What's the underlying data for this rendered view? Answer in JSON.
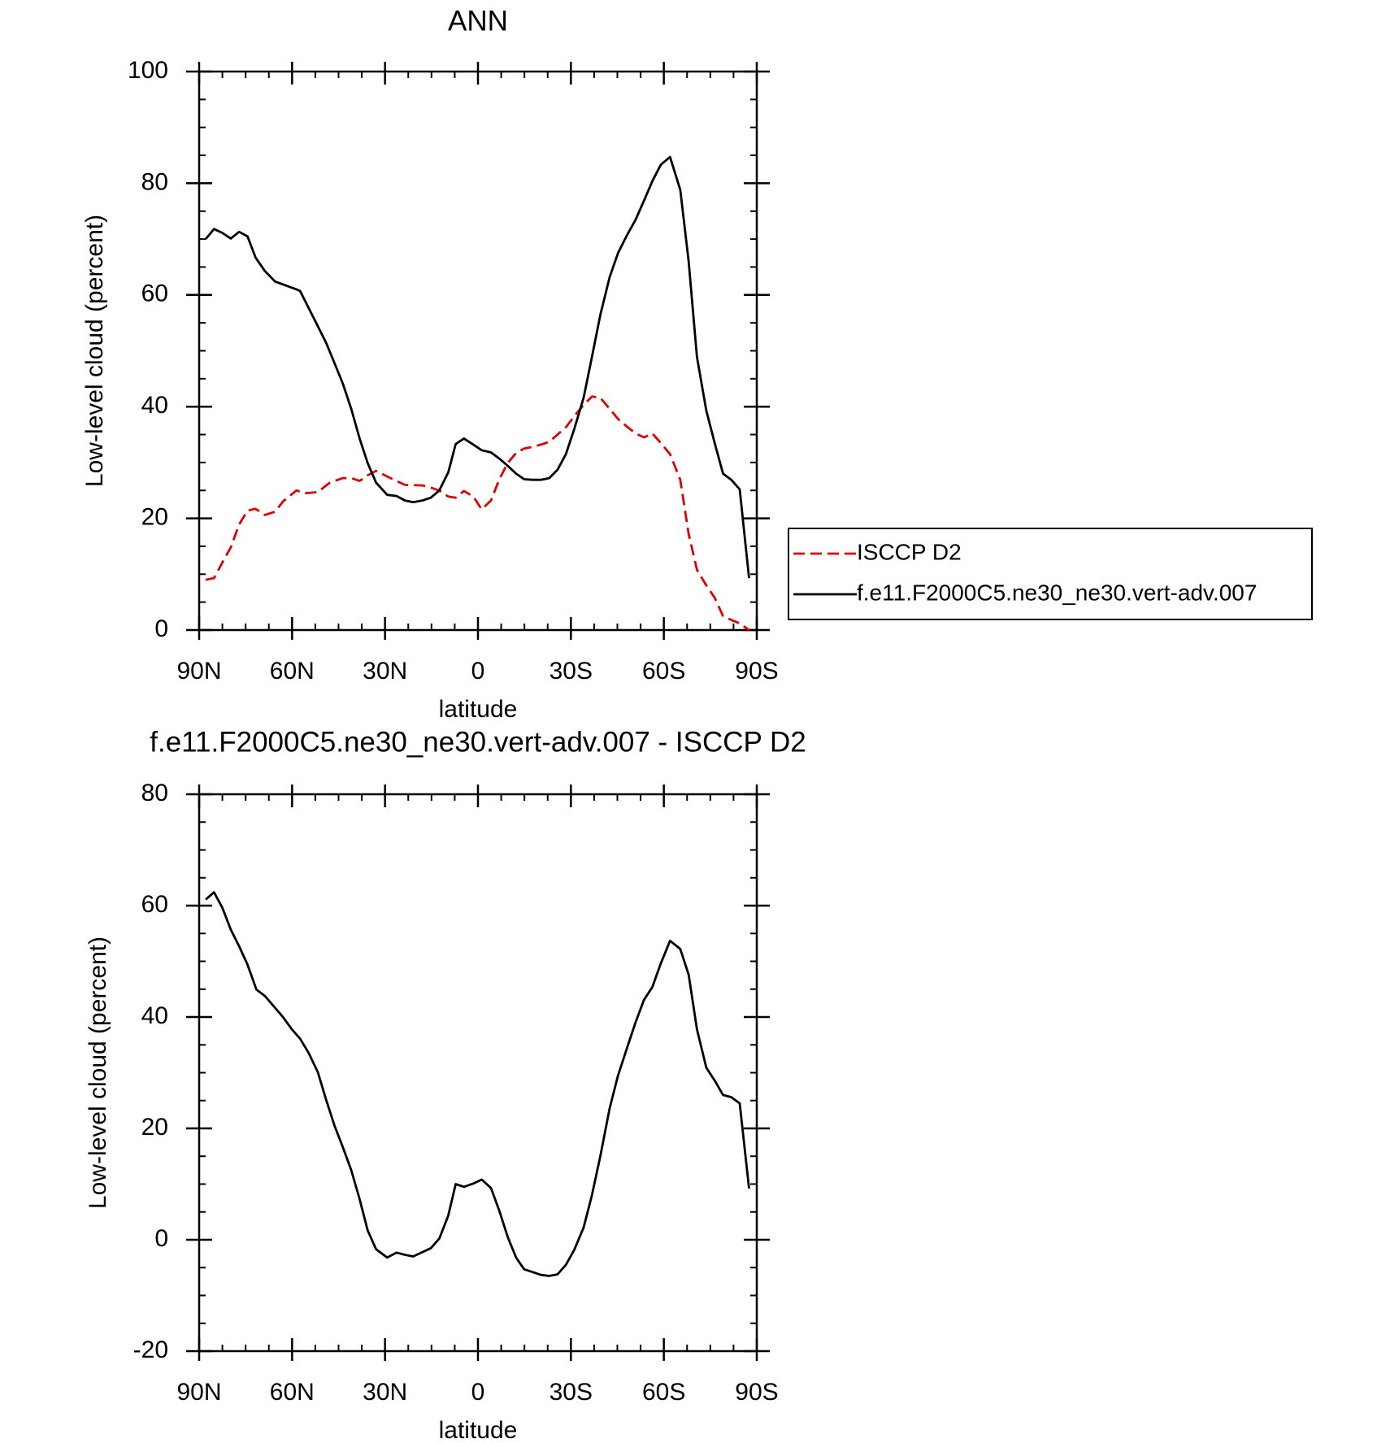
{
  "chart_data": [
    {
      "type": "line",
      "title": "ANN",
      "xlabel": "latitude",
      "ylabel": "Low-level cloud (percent)",
      "xlim": [
        90,
        -90
      ],
      "xticks": [
        {
          "value": 90,
          "label": "90N"
        },
        {
          "value": 60,
          "label": "60N"
        },
        {
          "value": 30,
          "label": "30N"
        },
        0,
        {
          "value": -30,
          "label": "30S"
        },
        {
          "value": -60,
          "label": "60S"
        },
        {
          "value": -90,
          "label": "90S"
        }
      ],
      "minor_xticks": [
        82.5,
        75,
        67.5,
        52.5,
        45,
        37.5,
        22.5,
        15,
        7.5,
        -7.5,
        -15,
        -22.5,
        -37.5,
        -45,
        -52.5,
        -67.5,
        -75,
        -82.5
      ],
      "ylim": [
        0,
        100
      ],
      "yticks": [
        0,
        20,
        40,
        60,
        80,
        100
      ],
      "minor_yticks": [
        5,
        10,
        15,
        25,
        30,
        35,
        45,
        50,
        55,
        65,
        70,
        75,
        85,
        90,
        95
      ],
      "legend": "right",
      "series": [
        {
          "name": "ISCCP D2",
          "color": "#e00000",
          "dash": true,
          "x": [
            87.9,
            85.2,
            82.5,
            79.8,
            77.1,
            74.4,
            71.8,
            68.8,
            65.5,
            62.8,
            58.6,
            55.6,
            51.7,
            47.8,
            43.6,
            40.9,
            38.2,
            35.6,
            32.9,
            29.3,
            26.3,
            23.6,
            17.9,
            15.2,
            12.5,
            9.6,
            7.2,
            4.5,
            1.5,
            -1.2,
            -4.2,
            -6.9,
            -9.6,
            -12.3,
            -14.9,
            -17.6,
            -20.3,
            -23.0,
            -25.7,
            -28.4,
            -31.1,
            -34.1,
            -36.8,
            -39.5,
            -42.5,
            -45.2,
            -47.9,
            -50.9,
            -53.6,
            -56.3,
            -59.0,
            -62.0,
            -65.3,
            -68.0,
            -70.7,
            -73.7,
            -76.4,
            -79.1,
            -81.8,
            -84.5,
            -87.5
          ],
          "values": [
            9.0,
            9.3,
            12.1,
            14.8,
            18.9,
            21.4,
            21.7,
            20.6,
            21.2,
            23.1,
            25.0,
            24.5,
            24.7,
            26.4,
            27.2,
            27.2,
            26.7,
            27.7,
            28.5,
            27.5,
            26.7,
            26.0,
            25.9,
            25.5,
            25.0,
            23.9,
            23.7,
            24.9,
            23.9,
            21.6,
            23.2,
            27.0,
            29.9,
            31.7,
            32.5,
            32.8,
            33.2,
            33.7,
            35.0,
            36.3,
            38.3,
            40.3,
            41.8,
            41.6,
            39.6,
            37.8,
            36.5,
            35.2,
            34.5,
            35.2,
            33.5,
            31.5,
            26.9,
            17.2,
            10.8,
            8.0,
            5.8,
            2.5,
            1.8,
            1.2,
            0
          ]
        },
        {
          "name": "f.e11.F2000C5.ne30_ne30.vert-adv.007",
          "color": "#000000",
          "dash": false,
          "x": [
            87.9,
            85.2,
            82.5,
            79.8,
            77.1,
            74.4,
            71.8,
            68.8,
            65.5,
            58.6,
            57.4,
            51.7,
            49.0,
            46.3,
            43.6,
            40.9,
            38.2,
            35.6,
            32.9,
            29.3,
            26.3,
            23.6,
            20.9,
            17.9,
            15.2,
            12.5,
            9.6,
            7.2,
            4.5,
            1.5,
            -1.2,
            -4.2,
            -6.9,
            -9.6,
            -12.3,
            -14.9,
            -17.6,
            -20.3,
            -23.0,
            -25.7,
            -28.4,
            -31.1,
            -34.1,
            -36.8,
            -39.5,
            -42.5,
            -45.2,
            -47.9,
            -50.9,
            -53.6,
            -56.3,
            -59.0,
            -62.0,
            -65.3,
            -68.0,
            -70.7,
            -73.7,
            -76.4,
            -79.1,
            -81.8,
            -84.5,
            -87.5
          ],
          "values": [
            70.0,
            71.8,
            71.1,
            70.1,
            71.3,
            70.5,
            66.7,
            64.3,
            62.4,
            61.0,
            60.7,
            54.4,
            51.4,
            47.8,
            44.1,
            39.6,
            34.3,
            29.9,
            26.4,
            24.2,
            24.0,
            23.2,
            22.9,
            23.2,
            23.7,
            25.0,
            28.2,
            33.3,
            34.3,
            33.2,
            32.2,
            31.8,
            30.7,
            29.4,
            28.0,
            27.0,
            26.9,
            26.9,
            27.2,
            28.7,
            31.5,
            36.0,
            41.6,
            48.9,
            56.4,
            63.2,
            67.5,
            70.5,
            73.5,
            76.9,
            80.4,
            83.3,
            84.7,
            78.8,
            66.0,
            48.9,
            39.3,
            33.5,
            28.0,
            26.9,
            25.2,
            9.3
          ]
        }
      ]
    },
    {
      "type": "line",
      "title": "f.e11.F2000C5.ne30_ne30.vert-adv.007 - ISCCP D2",
      "xlabel": "latitude",
      "ylabel": "Low-level cloud (percent)",
      "xlim": [
        90,
        -90
      ],
      "xticks": [
        {
          "value": 90,
          "label": "90N"
        },
        {
          "value": 60,
          "label": "60N"
        },
        {
          "value": 30,
          "label": "30N"
        },
        0,
        {
          "value": -30,
          "label": "30S"
        },
        {
          "value": -60,
          "label": "60S"
        },
        {
          "value": -90,
          "label": "90S"
        }
      ],
      "minor_xticks": [
        82.5,
        75,
        67.5,
        52.5,
        45,
        37.5,
        22.5,
        15,
        7.5,
        -7.5,
        -15,
        -22.5,
        -37.5,
        -45,
        -52.5,
        -67.5,
        -75,
        -82.5
      ],
      "ylim": [
        -20,
        80
      ],
      "yticks": [
        -20,
        0,
        20,
        40,
        60,
        80
      ],
      "minor_yticks": [
        -15,
        -10,
        -5,
        5,
        10,
        15,
        25,
        30,
        35,
        45,
        50,
        55,
        65,
        70,
        75
      ],
      "series": [
        {
          "color": "#000000",
          "dash": false,
          "x": [
            87.9,
            85.2,
            82.5,
            79.8,
            77.1,
            74.4,
            71.5,
            68.8,
            63.1,
            60.1,
            57.4,
            54.7,
            51.7,
            49.0,
            46.3,
            43.6,
            40.9,
            38.2,
            35.6,
            32.9,
            29.3,
            26.3,
            23.6,
            20.9,
            17.9,
            15.2,
            12.5,
            9.6,
            7.2,
            4.5,
            1.5,
            -1.2,
            -4.2,
            -6.9,
            -9.6,
            -12.3,
            -14.9,
            -17.6,
            -20.3,
            -23.0,
            -25.7,
            -28.4,
            -31.1,
            -34.1,
            -36.8,
            -39.5,
            -42.5,
            -45.2,
            -47.9,
            -50.9,
            -53.6,
            -56.3,
            -59.0,
            -62.0,
            -65.3,
            -68.0,
            -70.7,
            -73.7,
            -76.4,
            -79.1,
            -81.8,
            -84.5,
            -87.5
          ],
          "values": [
            61.1,
            62.4,
            59.6,
            55.7,
            52.7,
            49.4,
            44.9,
            43.8,
            40.1,
            37.8,
            36.1,
            33.6,
            30.1,
            25.1,
            20.5,
            16.6,
            12.5,
            7.3,
            1.7,
            -1.7,
            -3.2,
            -2.3,
            -2.7,
            -3.0,
            -2.2,
            -1.5,
            0.2,
            4.3,
            10.0,
            9.5,
            10.1,
            10.8,
            9.3,
            5.2,
            0.5,
            -3.2,
            -5.3,
            -5.8,
            -6.3,
            -6.5,
            -6.2,
            -4.5,
            -1.8,
            2.2,
            8.0,
            15.0,
            23.6,
            29.5,
            34.1,
            39.1,
            43.1,
            45.4,
            49.6,
            53.7,
            52.2,
            47.6,
            37.8,
            30.9,
            28.6,
            26.0,
            25.6,
            24.5,
            9.2
          ]
        }
      ]
    }
  ]
}
